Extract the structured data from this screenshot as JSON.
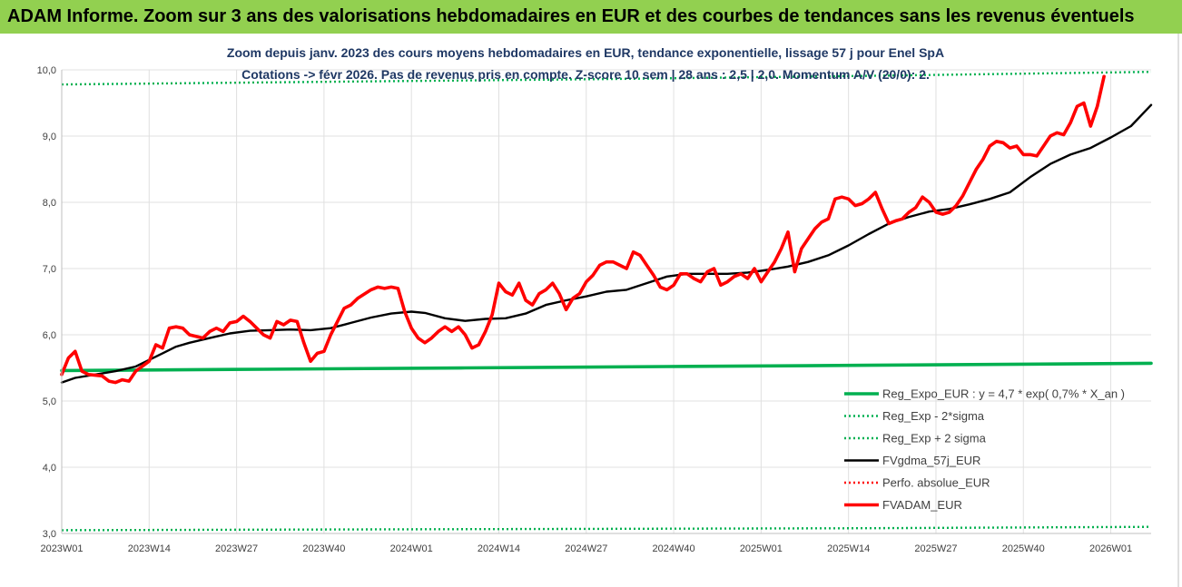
{
  "header": {
    "title": "ADAM Informe. Zoom sur 3 ans des valorisations hebdomadaires en EUR et des courbes de tendances sans les revenus éventuels"
  },
  "chart_data": {
    "type": "line",
    "title": [
      "Zoom depuis janv. 2023 des cours moyens hebdomadaires en EUR, tendance exponentielle, lissage 57 j pour Enel SpA",
      "Cotations -> févr 2026.  Pas de revenus pris en compte. Z-score 10 sem | 28 ans : 2,5 | 2,0. Momentum A/V (20/0): 2."
    ],
    "xlabel": "",
    "ylabel": "",
    "ylim": [
      3.0,
      10.0
    ],
    "yticks": [
      "3,0",
      "4,0",
      "5,0",
      "6,0",
      "7,0",
      "8,0",
      "9,0",
      "10,0"
    ],
    "yticks_values": [
      3,
      4,
      5,
      6,
      7,
      8,
      9,
      10
    ],
    "x_week_count": 163,
    "x_tick_labels": [
      "2023W01",
      "2023W14",
      "2023W27",
      "2023W40",
      "2024W01",
      "2024W14",
      "2024W27",
      "2024W40",
      "2025W01",
      "2025W14",
      "2025W27",
      "2025W40",
      "2026W01"
    ],
    "x_tick_index": [
      0,
      13,
      26,
      39,
      52,
      65,
      78,
      91,
      104,
      117,
      130,
      143,
      156
    ],
    "legend_position": "bottom-right",
    "series": [
      {
        "name": "Reg_Expo_EUR : y = 4,7 * exp( 0,7% *  X_an )",
        "style": "solid-thick",
        "color": "#00b050",
        "points": [
          [
            0,
            5.46
          ],
          [
            30,
            5.48
          ],
          [
            60,
            5.5
          ],
          [
            90,
            5.52
          ],
          [
            120,
            5.54
          ],
          [
            150,
            5.56
          ],
          [
            162,
            5.57
          ]
        ]
      },
      {
        "name": "Reg_Exp - 2*sigma",
        "style": "dotted",
        "color": "#00b050",
        "points": [
          [
            0,
            3.05
          ],
          [
            40,
            3.06
          ],
          [
            80,
            3.07
          ],
          [
            120,
            3.08
          ],
          [
            162,
            3.1
          ]
        ]
      },
      {
        "name": "Reg_Exp + 2 sigma",
        "style": "dotted",
        "color": "#00b050",
        "points": [
          [
            0,
            9.78
          ],
          [
            40,
            9.82
          ],
          [
            80,
            9.86
          ],
          [
            120,
            9.91
          ],
          [
            162,
            9.97
          ]
        ]
      },
      {
        "name": "FVgdma_57j_EUR",
        "style": "solid",
        "color": "#000000",
        "points": [
          [
            0,
            5.28
          ],
          [
            2,
            5.35
          ],
          [
            5,
            5.4
          ],
          [
            8,
            5.45
          ],
          [
            11,
            5.52
          ],
          [
            13,
            5.62
          ],
          [
            15,
            5.72
          ],
          [
            17,
            5.82
          ],
          [
            19,
            5.88
          ],
          [
            22,
            5.95
          ],
          [
            25,
            6.02
          ],
          [
            28,
            6.06
          ],
          [
            31,
            6.07
          ],
          [
            34,
            6.08
          ],
          [
            37,
            6.07
          ],
          [
            40,
            6.1
          ],
          [
            43,
            6.18
          ],
          [
            46,
            6.26
          ],
          [
            49,
            6.32
          ],
          [
            52,
            6.35
          ],
          [
            54,
            6.33
          ],
          [
            57,
            6.25
          ],
          [
            60,
            6.21
          ],
          [
            63,
            6.24
          ],
          [
            66,
            6.25
          ],
          [
            69,
            6.32
          ],
          [
            72,
            6.45
          ],
          [
            75,
            6.52
          ],
          [
            78,
            6.58
          ],
          [
            81,
            6.65
          ],
          [
            84,
            6.68
          ],
          [
            87,
            6.78
          ],
          [
            90,
            6.88
          ],
          [
            93,
            6.92
          ],
          [
            96,
            6.92
          ],
          [
            99,
            6.92
          ],
          [
            102,
            6.94
          ],
          [
            105,
            6.98
          ],
          [
            108,
            7.03
          ],
          [
            111,
            7.1
          ],
          [
            114,
            7.2
          ],
          [
            117,
            7.35
          ],
          [
            120,
            7.52
          ],
          [
            123,
            7.68
          ],
          [
            126,
            7.78
          ],
          [
            129,
            7.86
          ],
          [
            132,
            7.9
          ],
          [
            135,
            7.97
          ],
          [
            138,
            8.05
          ],
          [
            141,
            8.15
          ],
          [
            144,
            8.38
          ],
          [
            147,
            8.58
          ],
          [
            150,
            8.72
          ],
          [
            153,
            8.82
          ],
          [
            156,
            8.98
          ],
          [
            159,
            9.15
          ],
          [
            162,
            9.47
          ]
        ]
      },
      {
        "name": "Perfo. absolue_EUR",
        "style": "dotted",
        "color": "#ff0000",
        "points": []
      },
      {
        "name": "FVADAM_EUR",
        "style": "solid-thick",
        "color": "#ff0000",
        "points": [
          [
            0,
            5.4
          ],
          [
            1,
            5.65
          ],
          [
            2,
            5.75
          ],
          [
            3,
            5.45
          ],
          [
            4,
            5.4
          ],
          [
            6,
            5.38
          ],
          [
            7,
            5.3
          ],
          [
            8,
            5.28
          ],
          [
            9,
            5.32
          ],
          [
            10,
            5.3
          ],
          [
            11,
            5.45
          ],
          [
            13,
            5.6
          ],
          [
            14,
            5.85
          ],
          [
            15,
            5.8
          ],
          [
            16,
            6.1
          ],
          [
            17,
            6.12
          ],
          [
            18,
            6.1
          ],
          [
            19,
            6.0
          ],
          [
            21,
            5.95
          ],
          [
            22,
            6.05
          ],
          [
            23,
            6.1
          ],
          [
            24,
            6.05
          ],
          [
            25,
            6.18
          ],
          [
            26,
            6.2
          ],
          [
            27,
            6.28
          ],
          [
            28,
            6.2
          ],
          [
            29,
            6.1
          ],
          [
            30,
            6.0
          ],
          [
            31,
            5.95
          ],
          [
            32,
            6.2
          ],
          [
            33,
            6.15
          ],
          [
            34,
            6.22
          ],
          [
            35,
            6.2
          ],
          [
            36,
            5.88
          ],
          [
            37,
            5.6
          ],
          [
            38,
            5.72
          ],
          [
            39,
            5.75
          ],
          [
            40,
            6.0
          ],
          [
            41,
            6.2
          ],
          [
            42,
            6.4
          ],
          [
            43,
            6.45
          ],
          [
            44,
            6.55
          ],
          [
            46,
            6.68
          ],
          [
            47,
            6.72
          ],
          [
            48,
            6.7
          ],
          [
            49,
            6.72
          ],
          [
            50,
            6.7
          ],
          [
            51,
            6.35
          ],
          [
            52,
            6.1
          ],
          [
            53,
            5.95
          ],
          [
            54,
            5.88
          ],
          [
            55,
            5.95
          ],
          [
            56,
            6.05
          ],
          [
            57,
            6.12
          ],
          [
            58,
            6.05
          ],
          [
            59,
            6.12
          ],
          [
            60,
            6.0
          ],
          [
            61,
            5.8
          ],
          [
            62,
            5.85
          ],
          [
            63,
            6.05
          ],
          [
            64,
            6.3
          ],
          [
            65,
            6.78
          ],
          [
            66,
            6.65
          ],
          [
            67,
            6.6
          ],
          [
            68,
            6.78
          ],
          [
            69,
            6.52
          ],
          [
            70,
            6.45
          ],
          [
            71,
            6.62
          ],
          [
            72,
            6.68
          ],
          [
            73,
            6.78
          ],
          [
            74,
            6.62
          ],
          [
            75,
            6.38
          ],
          [
            76,
            6.55
          ],
          [
            77,
            6.62
          ],
          [
            78,
            6.8
          ],
          [
            79,
            6.9
          ],
          [
            80,
            7.05
          ],
          [
            81,
            7.1
          ],
          [
            82,
            7.1
          ],
          [
            83,
            7.05
          ],
          [
            84,
            7.0
          ],
          [
            85,
            7.25
          ],
          [
            86,
            7.2
          ],
          [
            87,
            7.05
          ],
          [
            88,
            6.9
          ],
          [
            89,
            6.72
          ],
          [
            90,
            6.68
          ],
          [
            91,
            6.75
          ],
          [
            92,
            6.92
          ],
          [
            93,
            6.92
          ],
          [
            94,
            6.85
          ],
          [
            95,
            6.8
          ],
          [
            96,
            6.95
          ],
          [
            97,
            7.0
          ],
          [
            98,
            6.75
          ],
          [
            99,
            6.8
          ],
          [
            100,
            6.88
          ],
          [
            101,
            6.92
          ],
          [
            102,
            6.85
          ],
          [
            103,
            7.0
          ],
          [
            104,
            6.8
          ],
          [
            105,
            6.95
          ],
          [
            106,
            7.1
          ],
          [
            107,
            7.3
          ],
          [
            108,
            7.55
          ],
          [
            109,
            6.95
          ],
          [
            110,
            7.3
          ],
          [
            111,
            7.45
          ],
          [
            112,
            7.6
          ],
          [
            113,
            7.7
          ],
          [
            114,
            7.75
          ],
          [
            115,
            8.05
          ],
          [
            116,
            8.08
          ],
          [
            117,
            8.05
          ],
          [
            118,
            7.95
          ],
          [
            119,
            7.98
          ],
          [
            120,
            8.05
          ],
          [
            121,
            8.15
          ],
          [
            122,
            7.9
          ],
          [
            123,
            7.68
          ],
          [
            124,
            7.72
          ],
          [
            125,
            7.75
          ],
          [
            126,
            7.85
          ],
          [
            127,
            7.92
          ],
          [
            128,
            8.08
          ],
          [
            129,
            8.0
          ],
          [
            130,
            7.85
          ],
          [
            131,
            7.82
          ],
          [
            132,
            7.85
          ],
          [
            133,
            7.95
          ],
          [
            134,
            8.1
          ],
          [
            135,
            8.3
          ],
          [
            136,
            8.5
          ],
          [
            137,
            8.65
          ],
          [
            138,
            8.85
          ],
          [
            139,
            8.92
          ],
          [
            140,
            8.9
          ],
          [
            141,
            8.82
          ],
          [
            142,
            8.85
          ],
          [
            143,
            8.72
          ],
          [
            144,
            8.72
          ],
          [
            145,
            8.7
          ],
          [
            146,
            8.85
          ],
          [
            147,
            9.0
          ],
          [
            148,
            9.05
          ],
          [
            149,
            9.02
          ],
          [
            150,
            9.2
          ],
          [
            151,
            9.45
          ],
          [
            152,
            9.5
          ],
          [
            153,
            9.15
          ],
          [
            154,
            9.45
          ],
          [
            155,
            9.9
          ]
        ]
      }
    ]
  }
}
